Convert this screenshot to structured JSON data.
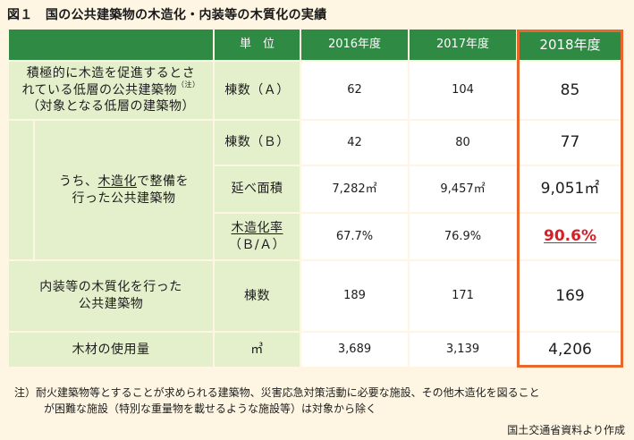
{
  "title": "図１　国の公共建築物の木造化・内装等の木質化の実績",
  "header": {
    "unit": "単　位",
    "years": [
      "2016年度",
      "2017年度",
      "2018年度"
    ]
  },
  "rows": {
    "public_buildings": {
      "label_line1": "積極的に木造を促進するとさ",
      "label_line2": "れている低層の公共建築物",
      "label_note": "（注）",
      "label_line3": "（対象となる低層の建築物）",
      "unit": "棟数（Ａ）",
      "values": [
        "62",
        "104",
        "85"
      ]
    },
    "wooden_sub": {
      "label_prefix": "うち、",
      "label_underlined": "木造化",
      "label_suffix": "で整備を",
      "label_line2": "行った公共建築物",
      "count": {
        "unit": "棟数（Ｂ）",
        "values": [
          "42",
          "80",
          "77"
        ]
      },
      "floor": {
        "unit": "延べ面積",
        "values": [
          "7,282㎡",
          "9,457㎡",
          "9,051㎡"
        ]
      },
      "ratio": {
        "unit_line1": "木造化率",
        "unit_line2": "（Ｂ/Ａ）",
        "values": [
          "67.7%",
          "76.9%",
          "90.6%"
        ]
      }
    },
    "interior": {
      "label_line1": "内装等の木質化を行った",
      "label_line2": "公共建築物",
      "unit": "棟数",
      "values": [
        "189",
        "171",
        "169"
      ]
    },
    "timber": {
      "label": "木材の使用量",
      "unit": "㎥",
      "values": [
        "3,689",
        "3,139",
        "4,206"
      ]
    }
  },
  "note": {
    "line1": "注）耐火建築物等とすることが求められる建築物、災害応急対策活動に必要な施設、その他木造化を図ること",
    "line2": "が困難な施設（特別な重量物を載せるような施設等）は対象から除く"
  },
  "source": "国土交通省資料より作成",
  "colors": {
    "header_green": "#2f8a44",
    "label_bg": "#e4efcc",
    "highlight": "#e8672c",
    "accent_red": "#d81f26"
  }
}
